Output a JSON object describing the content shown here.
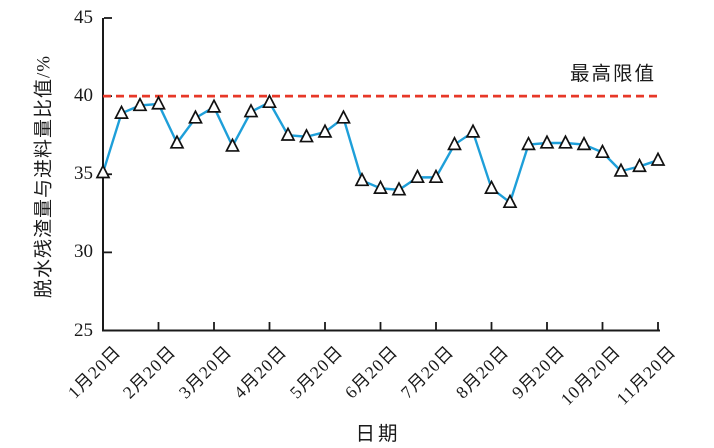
{
  "chart_data": {
    "type": "line",
    "title": "",
    "xlabel": "日期",
    "ylabel": "脱水残渣量与进料量比值/%",
    "ylim": [
      25,
      45
    ],
    "y_ticks": [
      25,
      30,
      35,
      40,
      45
    ],
    "x_tick_labels": [
      "1月20日",
      "2月20日",
      "3月20日",
      "4月20日",
      "5月20日",
      "6月20日",
      "7月20日",
      "8月20日",
      "9月20日",
      "10月20日",
      "11月20日"
    ],
    "points_per_month_tick": 3,
    "series": [
      {
        "name": "脱水残渣量与进料量比值",
        "marker": "triangle-up",
        "values": [
          35.1,
          38.9,
          39.4,
          39.5,
          37.0,
          38.6,
          39.3,
          36.8,
          39.0,
          39.6,
          37.5,
          37.4,
          37.7,
          38.6,
          34.6,
          34.1,
          34.0,
          34.8,
          34.8,
          36.9,
          37.7,
          34.1,
          33.2,
          36.9,
          37.0,
          37.0,
          36.9,
          36.4,
          35.2,
          35.5,
          35.9
        ]
      }
    ],
    "limit_line": {
      "value": 40,
      "label": "最高限值",
      "style": "dashed"
    },
    "colors": {
      "series_line": "#1e9fd9",
      "marker_fill": "#ffffff",
      "marker_edge": "#111111",
      "limit_line": "#e73828",
      "axis": "#1a1a1a",
      "text": "#1a1a1a"
    },
    "legend_position": "none",
    "grid": false
  }
}
